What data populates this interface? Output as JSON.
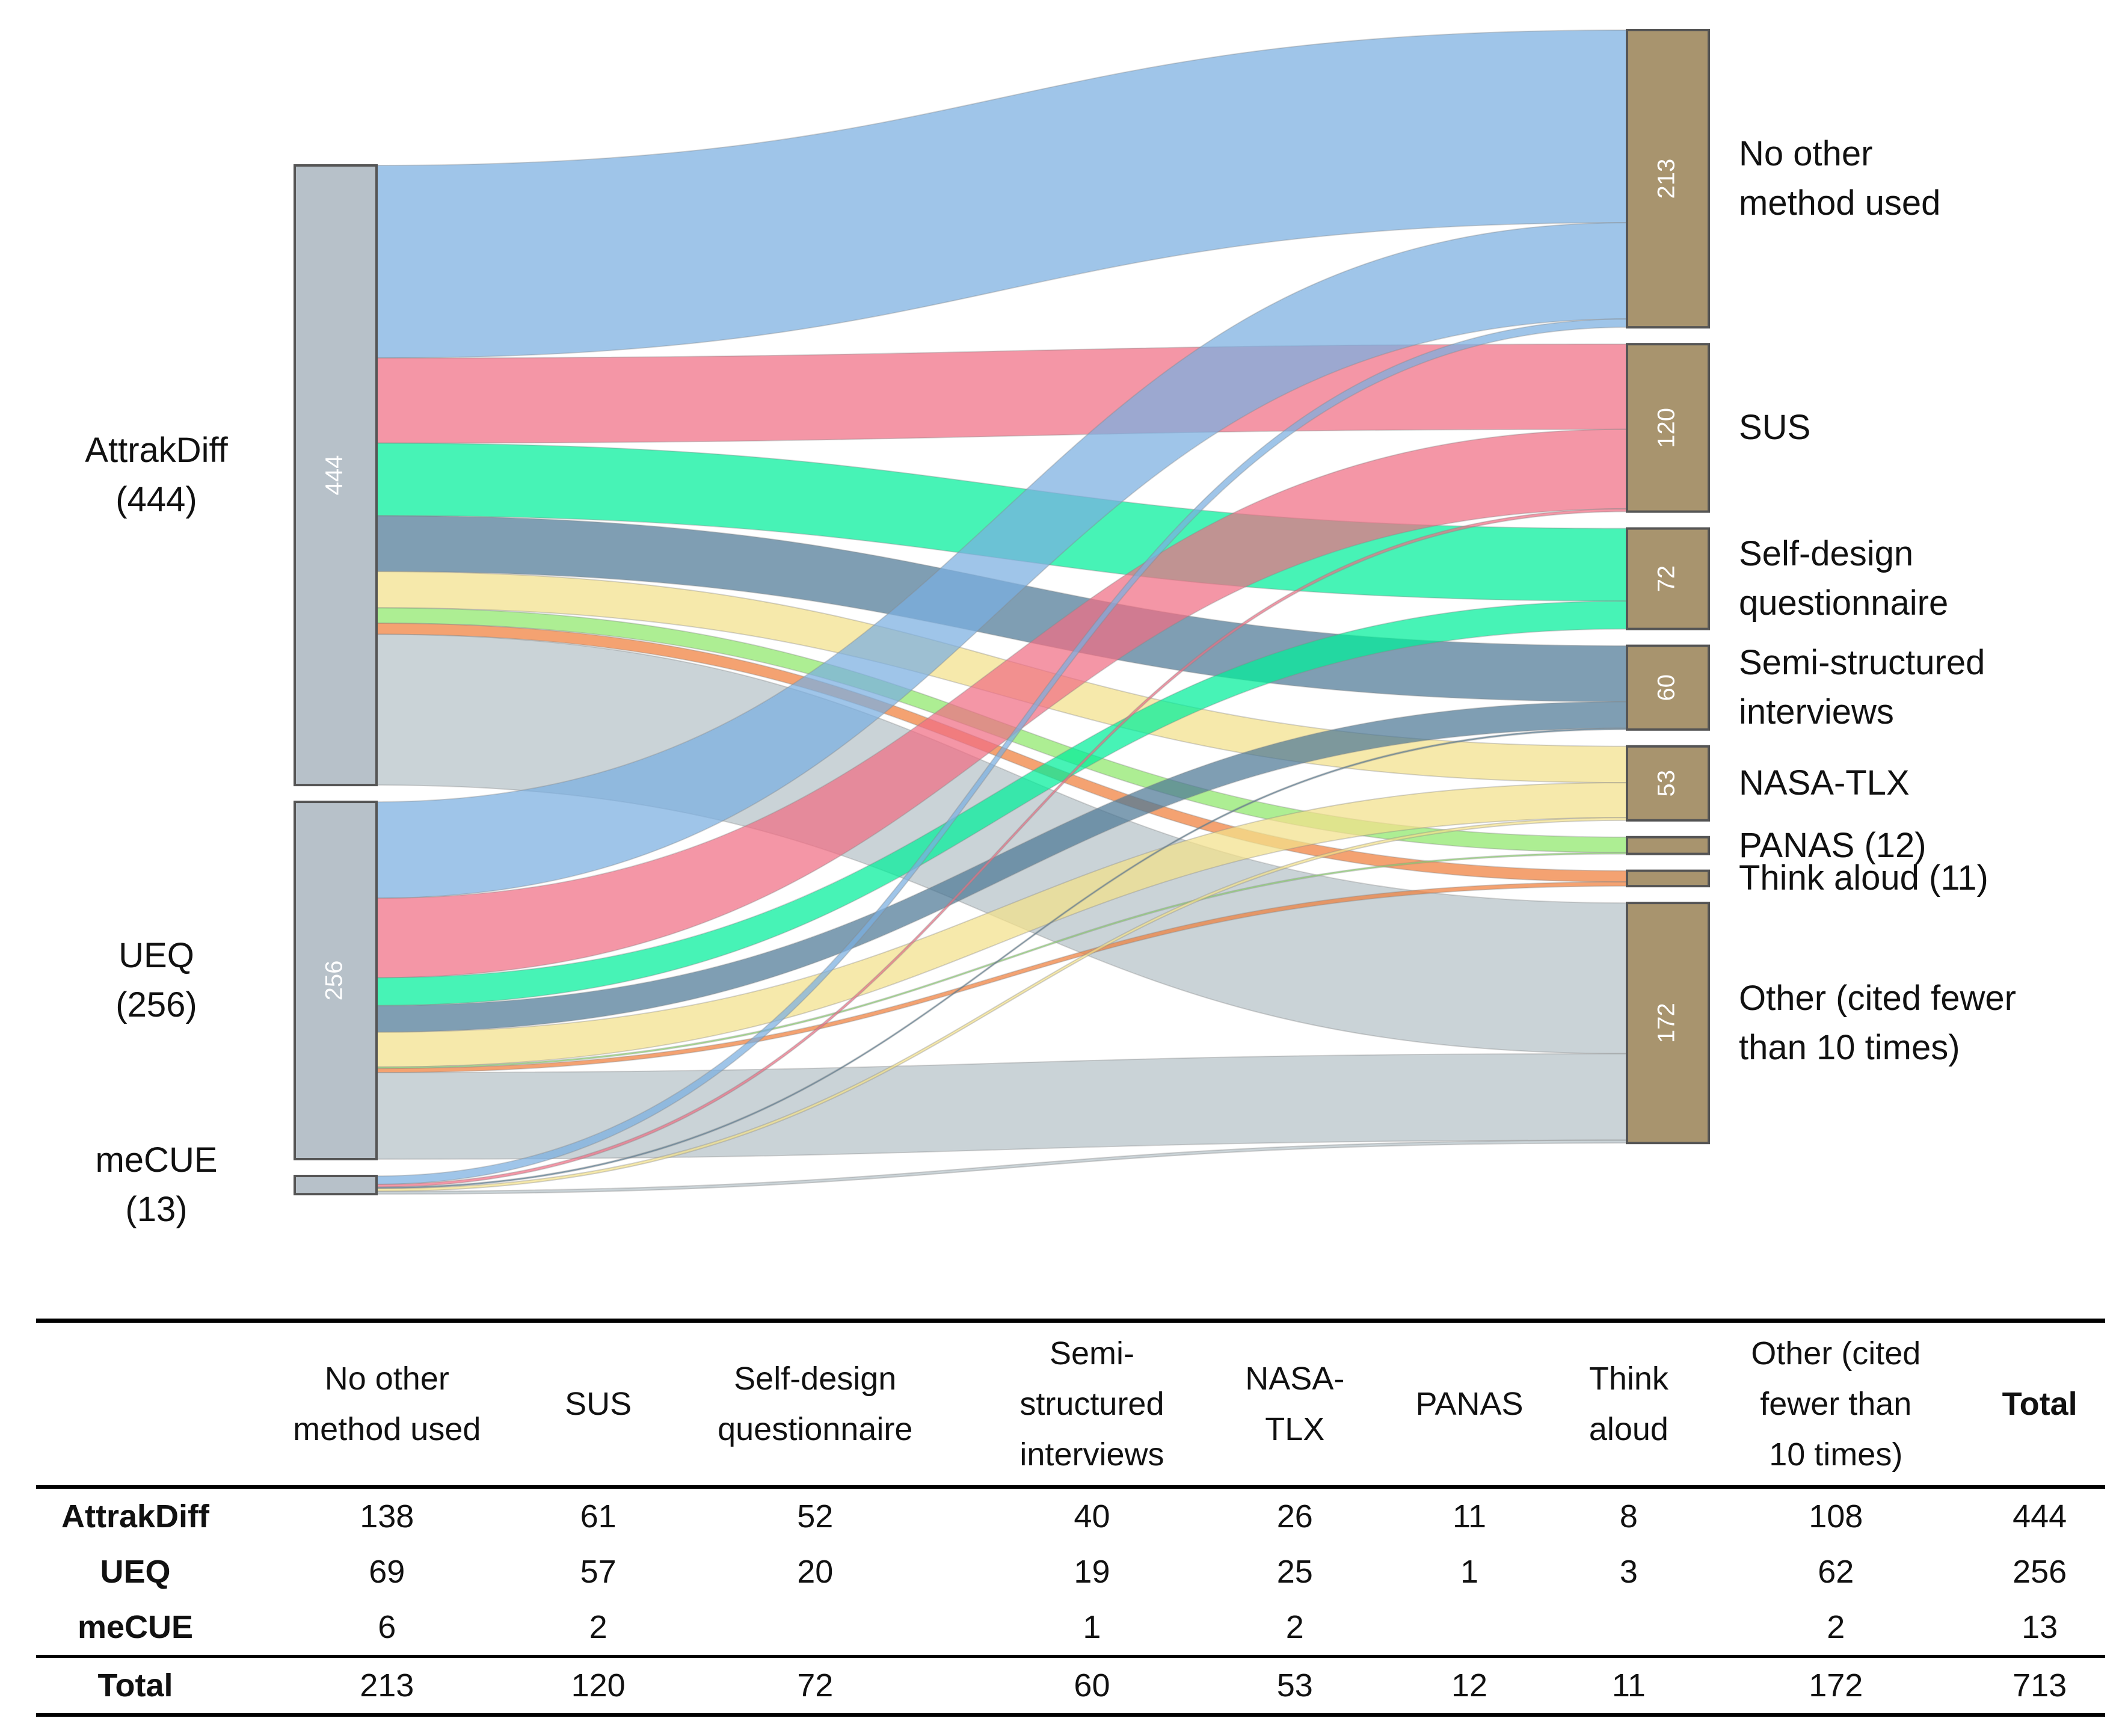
{
  "chart_data": {
    "type": "sankey",
    "sources": [
      {
        "name": "AttrakDiff",
        "label": "AttrakDiff\n(444)",
        "total": 444,
        "color": "#b7c1c9"
      },
      {
        "name": "UEQ",
        "label": "UEQ\n(256)",
        "total": 256,
        "color": "#b7c1c9"
      },
      {
        "name": "meCUE",
        "label": "meCUE\n(13)",
        "total": 13,
        "color": "#b7c1c9"
      }
    ],
    "targets": [
      {
        "name": "No other method used",
        "label": "No other\nmethod used",
        "total": 213,
        "color": "#7aaee0"
      },
      {
        "name": "SUS",
        "label": "SUS",
        "total": 120,
        "color": "#f06e84"
      },
      {
        "name": "Self-design questionnaire",
        "label": "Self-design\nquestionnaire",
        "total": 72,
        "color": "#00ee9a"
      },
      {
        "name": "Semi-structured interviews",
        "label": "Semi-structured\ninterviews",
        "total": 60,
        "color": "#4e7896"
      },
      {
        "name": "NASA-TLX",
        "label": "NASA-TLX",
        "total": 53,
        "color": "#f2e08a"
      },
      {
        "name": "PANAS",
        "label": "PANAS (12)",
        "total": 12,
        "color": "#8ee86a"
      },
      {
        "name": "Think aloud",
        "label": "Think aloud (11)",
        "total": 11,
        "color": "#f07e3a"
      },
      {
        "name": "Other",
        "label": "Other (cited fewer\nthan 10 times)",
        "total": 172,
        "color": "#b6c2c8"
      }
    ],
    "flows": [
      {
        "source": "AttrakDiff",
        "values": [
          138,
          61,
          52,
          40,
          26,
          11,
          8,
          108
        ]
      },
      {
        "source": "UEQ",
        "values": [
          69,
          57,
          20,
          19,
          25,
          1,
          3,
          62
        ]
      },
      {
        "source": "meCUE",
        "values": [
          6,
          2,
          0,
          1,
          2,
          0,
          0,
          2
        ]
      }
    ],
    "node_color_source": "#b7c1c9",
    "node_color_target": "#a8946e",
    "node_border": "#555555"
  },
  "table": {
    "headers": [
      "",
      "No other\nmethod used",
      "SUS",
      "Self-design\nquestionnaire",
      "Semi-\nstructured\ninterviews",
      "NASA-\nTLX",
      "PANAS",
      "Think\naloud",
      "Other (cited\nfewer than\n10 times)",
      "Total"
    ],
    "rows": [
      [
        "AttrakDiff",
        "138",
        "61",
        "52",
        "40",
        "26",
        "11",
        "8",
        "108",
        "444"
      ],
      [
        "UEQ",
        "69",
        "57",
        "20",
        "19",
        "25",
        "1",
        "3",
        "62",
        "256"
      ],
      [
        "meCUE",
        "6",
        "2",
        "",
        "1",
        "2",
        "",
        "",
        "2",
        "13"
      ]
    ],
    "total_row": [
      "Total",
      "213",
      "120",
      "72",
      "60",
      "53",
      "12",
      "11",
      "172",
      "713"
    ]
  }
}
